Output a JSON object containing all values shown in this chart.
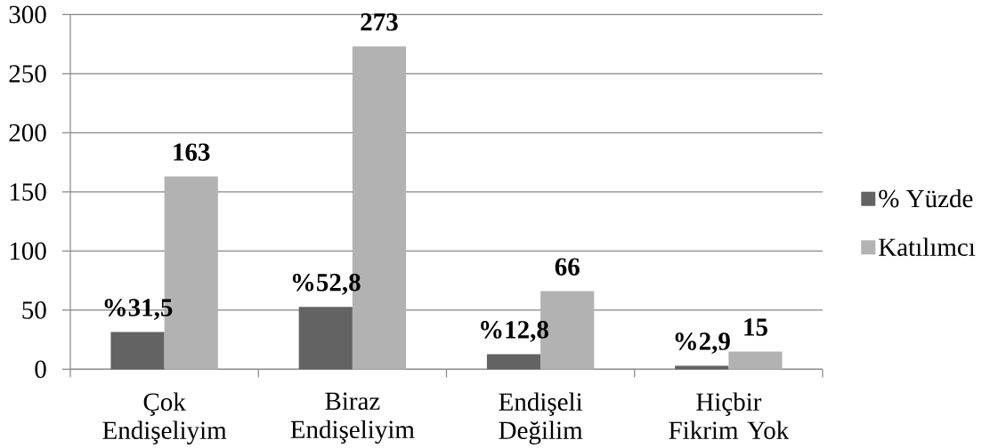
{
  "chart_data": {
    "type": "bar",
    "categories": [
      "Çok Endişeliyim",
      "Biraz Endişeliyim",
      "Endişeli Değilim",
      "Hiçbir Fikrim Yok"
    ],
    "series": [
      {
        "name": "% Yüzde",
        "color": "#636363",
        "values": [
          31.5,
          52.8,
          12.8,
          2.9
        ],
        "value_labels": [
          "%31,5",
          "%52,8",
          "%12,8",
          "%2,9"
        ]
      },
      {
        "name": "Katılımcı",
        "color": "#b2b2b2",
        "values": [
          163,
          273,
          66,
          15
        ],
        "value_labels": [
          "163",
          "273",
          "66",
          "15"
        ]
      }
    ],
    "ylim": [
      0,
      300
    ],
    "yticks": [
      0,
      50,
      100,
      150,
      200,
      250,
      300
    ],
    "grid": "y",
    "legend": "right"
  }
}
